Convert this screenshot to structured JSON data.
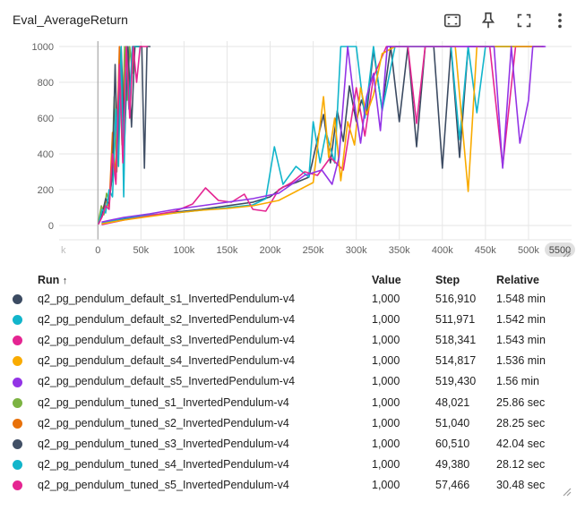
{
  "card": {
    "title": "Eval_AverageReturn"
  },
  "toolbar": {
    "icons": [
      "fit-domain-icon",
      "pin-icon",
      "fullscreen-icon",
      "more-vert-icon"
    ]
  },
  "colors": {
    "grid": "#e6e6e6",
    "axis": "#9e9e9e",
    "tick_text": "#616161",
    "end_badge_bg": "#e0e0e0"
  },
  "chart_data": {
    "type": "line",
    "title": "Eval_AverageReturn",
    "xlabel": "",
    "ylabel": "",
    "xlim": [
      -45000,
      550000
    ],
    "ylim": [
      -80,
      1030
    ],
    "x_ticks": [
      {
        "value": 0,
        "label": "0"
      },
      {
        "value": 50000,
        "label": "50k"
      },
      {
        "value": 100000,
        "label": "100k"
      },
      {
        "value": 150000,
        "label": "150k"
      },
      {
        "value": 200000,
        "label": "200k"
      },
      {
        "value": 250000,
        "label": "250k"
      },
      {
        "value": 300000,
        "label": "300k"
      },
      {
        "value": 350000,
        "label": "350k"
      },
      {
        "value": 400000,
        "label": "400k"
      },
      {
        "value": 450000,
        "label": "450k"
      },
      {
        "value": 500000,
        "label": "500k"
      }
    ],
    "x_cut_left_label": "k",
    "x_end_label": "5500",
    "y_ticks": [
      0,
      200,
      400,
      600,
      800,
      1000
    ],
    "grid": true,
    "series": [
      {
        "name": "q2_pg_pendulum_default_s1_InvertedPendulum-v4",
        "color": "#3c4b62",
        "x": [
          5000,
          30000,
          60000,
          90000,
          120000,
          150000,
          180000,
          200000,
          215000,
          230000,
          245000,
          255000,
          262000,
          270000,
          278000,
          285000,
          292000,
          300000,
          306000,
          312000,
          320000,
          330000,
          340000,
          350000,
          360000,
          370000,
          380000,
          390000,
          400000,
          410000,
          420000,
          430000,
          440000,
          450000,
          460000,
          470000,
          480000,
          490000,
          500000,
          516910
        ],
        "y": [
          10,
          35,
          55,
          75,
          90,
          110,
          130,
          160,
          215,
          240,
          270,
          480,
          620,
          350,
          640,
          470,
          780,
          580,
          700,
          620,
          980,
          650,
          1000,
          580,
          1000,
          440,
          1000,
          1000,
          320,
          1000,
          380,
          1000,
          1000,
          1000,
          1000,
          1000,
          1000,
          1000,
          1000,
          1000
        ]
      },
      {
        "name": "q2_pg_pendulum_default_s2_InvertedPendulum-v4",
        "color": "#12b5cb",
        "x": [
          5000,
          30000,
          60000,
          90000,
          120000,
          150000,
          180000,
          195000,
          205000,
          215000,
          230000,
          245000,
          250000,
          258000,
          265000,
          275000,
          282000,
          290000,
          300000,
          310000,
          320000,
          330000,
          345000,
          360000,
          375000,
          390000,
          400000,
          410000,
          420000,
          430000,
          440000,
          450000,
          465000,
          480000,
          495000,
          511971
        ],
        "y": [
          15,
          40,
          60,
          70,
          85,
          100,
          115,
          150,
          440,
          230,
          330,
          270,
          580,
          350,
          520,
          350,
          1000,
          1000,
          1000,
          600,
          1000,
          640,
          1000,
          1000,
          1000,
          1000,
          1000,
          1000,
          480,
          1000,
          630,
          1000,
          1000,
          1000,
          1000,
          1000
        ]
      },
      {
        "name": "q2_pg_pendulum_default_s3_InvertedPendulum-v4",
        "color": "#e52592",
        "x": [
          5000,
          30000,
          60000,
          90000,
          110000,
          125000,
          140000,
          155000,
          170000,
          180000,
          195000,
          210000,
          225000,
          240000,
          255000,
          270000,
          285000,
          300000,
          310000,
          320000,
          335000,
          350000,
          360000,
          370000,
          380000,
          395000,
          410000,
          425000,
          440000,
          455000,
          470000,
          485000,
          500000,
          518341
        ],
        "y": [
          5,
          30,
          55,
          80,
          120,
          210,
          140,
          130,
          175,
          90,
          80,
          200,
          240,
          300,
          280,
          380,
          310,
          770,
          500,
          830,
          1000,
          1000,
          1000,
          570,
          1000,
          1000,
          1000,
          1000,
          1000,
          1000,
          330,
          1000,
          1000,
          1000
        ]
      },
      {
        "name": "q2_pg_pendulum_default_s4_InvertedPendulum-v4",
        "color": "#f9ab00",
        "x": [
          5000,
          30000,
          60000,
          90000,
          120000,
          150000,
          180000,
          210000,
          230000,
          250000,
          262000,
          268000,
          275000,
          282000,
          290000,
          298000,
          305000,
          312000,
          320000,
          330000,
          345000,
          360000,
          375000,
          385000,
          400000,
          415000,
          430000,
          440000,
          455000,
          470000,
          485000,
          500000,
          514817
        ],
        "y": [
          10,
          30,
          50,
          70,
          85,
          95,
          110,
          140,
          190,
          240,
          720,
          380,
          600,
          250,
          580,
          450,
          770,
          620,
          730,
          960,
          1000,
          1000,
          1000,
          1000,
          1000,
          1000,
          190,
          1000,
          1000,
          1000,
          1000,
          1000,
          1000
        ]
      },
      {
        "name": "q2_pg_pendulum_default_s5_InvertedPendulum-v4",
        "color": "#9334e6",
        "x": [
          5000,
          30000,
          60000,
          90000,
          120000,
          150000,
          180000,
          210000,
          240000,
          260000,
          272000,
          280000,
          290000,
          298000,
          305000,
          312000,
          320000,
          328000,
          336000,
          345000,
          355000,
          365000,
          380000,
          395000,
          410000,
          420000,
          430000,
          445000,
          460000,
          470000,
          480000,
          490000,
          500000,
          505000,
          519430
        ],
        "y": [
          20,
          45,
          65,
          90,
          110,
          130,
          150,
          180,
          280,
          310,
          230,
          380,
          1000,
          680,
          460,
          720,
          850,
          530,
          1000,
          1000,
          1000,
          1000,
          1000,
          1000,
          1000,
          1000,
          1000,
          1000,
          1000,
          320,
          1000,
          460,
          700,
          1000,
          1000
        ]
      },
      {
        "name": "q2_pg_pendulum_tuned_s1_InvertedPendulum-v4",
        "color": "#7cb342",
        "x": [
          1000,
          4000,
          7000,
          10000,
          13000,
          16000,
          19000,
          22000,
          25000,
          28000,
          31000,
          34000,
          37000,
          40000,
          43000,
          46000,
          48021
        ],
        "y": [
          30,
          110,
          60,
          180,
          140,
          250,
          720,
          300,
          880,
          450,
          1000,
          700,
          1000,
          850,
          1000,
          1000,
          1000
        ]
      },
      {
        "name": "q2_pg_pendulum_tuned_s2_InvertedPendulum-v4",
        "color": "#e8710a",
        "x": [
          1000,
          5000,
          9000,
          13000,
          17000,
          21000,
          25000,
          29000,
          33000,
          37000,
          41000,
          45000,
          48000,
          51040
        ],
        "y": [
          20,
          80,
          140,
          100,
          520,
          260,
          1000,
          500,
          1000,
          700,
          1000,
          1000,
          1000,
          1000
        ]
      },
      {
        "name": "q2_pg_pendulum_tuned_s3_InvertedPendulum-v4",
        "color": "#425066",
        "x": [
          1000,
          5000,
          9000,
          13000,
          17000,
          20000,
          23000,
          27000,
          31000,
          35000,
          39000,
          43000,
          47000,
          51000,
          54000,
          57000,
          60510
        ],
        "y": [
          10,
          60,
          150,
          120,
          300,
          900,
          380,
          1000,
          480,
          1000,
          550,
          1000,
          1000,
          1000,
          320,
          1000,
          1000
        ]
      },
      {
        "name": "q2_pg_pendulum_tuned_s4_InvertedPendulum-v4",
        "color": "#12b5cb",
        "x": [
          1000,
          5000,
          9000,
          13000,
          17000,
          21000,
          24000,
          27000,
          30000,
          33000,
          36000,
          40000,
          44000,
          47000,
          49380
        ],
        "y": [
          15,
          90,
          70,
          200,
          160,
          650,
          330,
          1000,
          160,
          1000,
          650,
          1000,
          1000,
          1000,
          1000
        ]
      },
      {
        "name": "q2_pg_pendulum_tuned_s5_InvertedPendulum-v4",
        "color": "#e52592",
        "x": [
          1000,
          5000,
          9000,
          13000,
          17000,
          21000,
          25000,
          29000,
          33000,
          37000,
          41000,
          45000,
          49000,
          53000,
          57466
        ],
        "y": [
          10,
          50,
          110,
          90,
          400,
          230,
          900,
          350,
          1000,
          600,
          1000,
          800,
          1000,
          1000,
          1000
        ]
      }
    ]
  },
  "table": {
    "headers": {
      "run": "Run",
      "sort_arrow": "↑",
      "value": "Value",
      "step": "Step",
      "relative": "Relative"
    },
    "rows": [
      {
        "color": "#3c4b62",
        "run": "q2_pg_pendulum_default_s1_InvertedPendulum-v4",
        "value": "1,000",
        "step": "516,910",
        "relative": "1.548 min"
      },
      {
        "color": "#12b5cb",
        "run": "q2_pg_pendulum_default_s2_InvertedPendulum-v4",
        "value": "1,000",
        "step": "511,971",
        "relative": "1.542 min"
      },
      {
        "color": "#e52592",
        "run": "q2_pg_pendulum_default_s3_InvertedPendulum-v4",
        "value": "1,000",
        "step": "518,341",
        "relative": "1.543 min"
      },
      {
        "color": "#f9ab00",
        "run": "q2_pg_pendulum_default_s4_InvertedPendulum-v4",
        "value": "1,000",
        "step": "514,817",
        "relative": "1.536 min"
      },
      {
        "color": "#9334e6",
        "run": "q2_pg_pendulum_default_s5_InvertedPendulum-v4",
        "value": "1,000",
        "step": "519,430",
        "relative": "1.56 min"
      },
      {
        "color": "#7cb342",
        "run": "q2_pg_pendulum_tuned_s1_InvertedPendulum-v4",
        "value": "1,000",
        "step": "48,021",
        "relative": "25.86 sec"
      },
      {
        "color": "#e8710a",
        "run": "q2_pg_pendulum_tuned_s2_InvertedPendulum-v4",
        "value": "1,000",
        "step": "51,040",
        "relative": "28.25 sec"
      },
      {
        "color": "#425066",
        "run": "q2_pg_pendulum_tuned_s3_InvertedPendulum-v4",
        "value": "1,000",
        "step": "60,510",
        "relative": "42.04 sec"
      },
      {
        "color": "#12b5cb",
        "run": "q2_pg_pendulum_tuned_s4_InvertedPendulum-v4",
        "value": "1,000",
        "step": "49,380",
        "relative": "28.12 sec"
      },
      {
        "color": "#e52592",
        "run": "q2_pg_pendulum_tuned_s5_InvertedPendulum-v4",
        "value": "1,000",
        "step": "57,466",
        "relative": "30.48 sec"
      }
    ]
  }
}
